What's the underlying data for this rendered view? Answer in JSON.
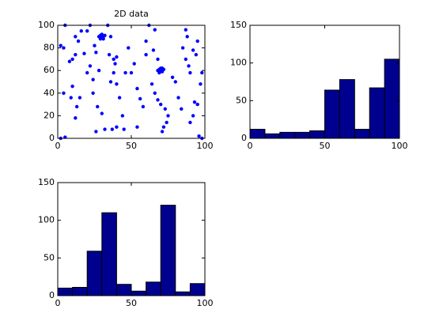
{
  "chart_data": [
    {
      "type": "scatter",
      "title": "2D data",
      "color": "#0000ff",
      "x": [
        5,
        2,
        4,
        8,
        10,
        12,
        14,
        16,
        18,
        12,
        20,
        22,
        13,
        15,
        12,
        10,
        9,
        4,
        2,
        5,
        20,
        22,
        25,
        26,
        28,
        24,
        24,
        27,
        30,
        32,
        26,
        34,
        36,
        35,
        38,
        40,
        39,
        38,
        36,
        40,
        42,
        44,
        40,
        37,
        45,
        46,
        48,
        50,
        52,
        54,
        56,
        54,
        58,
        60,
        62,
        60,
        65,
        66,
        68,
        64,
        66,
        68,
        70,
        73,
        75,
        74,
        72,
        71,
        78,
        80,
        82,
        84,
        85,
        87,
        88,
        87,
        89,
        90,
        92,
        94,
        95,
        98,
        97,
        95,
        92,
        90,
        96,
        98,
        93,
        28,
        29,
        30,
        31,
        32,
        30,
        29,
        31,
        70,
        69,
        71,
        70,
        68,
        72,
        69,
        71
      ],
      "y": [
        100,
        82,
        80,
        68,
        70,
        90,
        86,
        95,
        75,
        74,
        58,
        64,
        28,
        36,
        18,
        46,
        36,
        40,
        0,
        1,
        95,
        100,
        82,
        76,
        60,
        52,
        40,
        28,
        22,
        8,
        6,
        100,
        90,
        74,
        70,
        72,
        66,
        58,
        50,
        48,
        36,
        20,
        10,
        8,
        8,
        58,
        80,
        58,
        66,
        44,
        35,
        10,
        28,
        86,
        100,
        74,
        78,
        96,
        70,
        48,
        40,
        34,
        30,
        26,
        20,
        14,
        10,
        6,
        54,
        50,
        36,
        26,
        80,
        96,
        90,
        70,
        64,
        58,
        78,
        74,
        86,
        58,
        48,
        30,
        20,
        14,
        2,
        0,
        32,
        90,
        91,
        89,
        90,
        91,
        92,
        88,
        88,
        60,
        61,
        59,
        62,
        60,
        61,
        58,
        62
      ],
      "xlim": [
        0,
        100
      ],
      "ylim": [
        0,
        100
      ],
      "xticks": [
        0,
        50,
        100
      ],
      "yticks": [
        0,
        20,
        40,
        60,
        80,
        100
      ]
    },
    {
      "type": "histogram",
      "color": "#00008f",
      "bins": [
        0,
        10,
        20,
        30,
        40,
        50,
        60,
        70,
        80,
        90,
        100
      ],
      "values": [
        12,
        6,
        8,
        8,
        10,
        64,
        78,
        12,
        67,
        105
      ],
      "xlim": [
        0,
        100
      ],
      "ylim": [
        0,
        150
      ],
      "xticks": [
        0,
        50,
        100
      ],
      "yticks": [
        0,
        50,
        100,
        150
      ]
    },
    {
      "type": "histogram",
      "color": "#00008f",
      "bins": [
        0,
        10,
        20,
        30,
        40,
        50,
        60,
        70,
        80,
        90,
        100
      ],
      "values": [
        10,
        11,
        59,
        110,
        15,
        6,
        18,
        120,
        5,
        16
      ],
      "xlim": [
        0,
        100
      ],
      "ylim": [
        0,
        150
      ],
      "xticks": [
        0,
        50,
        100
      ],
      "yticks": [
        0,
        50,
        100,
        150
      ]
    }
  ]
}
